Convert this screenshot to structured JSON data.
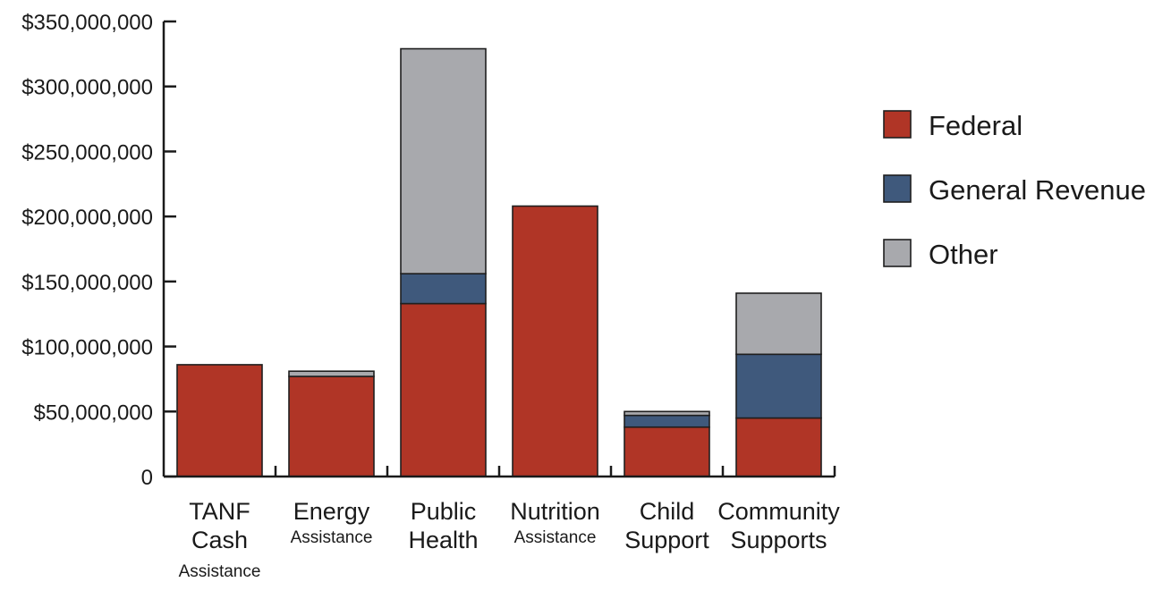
{
  "chart_data": {
    "type": "bar",
    "stacked": true,
    "categories": [
      [
        "TANF",
        "Cash",
        "Assistance"
      ],
      [
        "Energy",
        "Assistance"
      ],
      [
        "Public",
        "Health"
      ],
      [
        "Nutrition",
        "Assistance"
      ],
      [
        "Child",
        "Support"
      ],
      [
        "Community",
        "Supports"
      ]
    ],
    "series": [
      {
        "name": "Federal",
        "color": "#b03526",
        "values": [
          86000000,
          77000000,
          133000000,
          208000000,
          38000000,
          45000000
        ]
      },
      {
        "name": "General Revenue",
        "color": "#3f597c",
        "values": [
          0,
          0,
          23000000,
          0,
          9000000,
          49000000
        ]
      },
      {
        "name": "Other",
        "color": "#a8a9ad",
        "values": [
          0,
          4000000,
          173000000,
          0,
          3000000,
          47000000
        ]
      }
    ],
    "ylim": [
      0,
      350000000
    ],
    "yticks": [
      {
        "value": 0,
        "label": "0"
      },
      {
        "value": 50000000,
        "label": "$50,000,000"
      },
      {
        "value": 100000000,
        "label": "$100,000,000"
      },
      {
        "value": 150000000,
        "label": "$150,000,000"
      },
      {
        "value": 200000000,
        "label": "$200,000,000"
      },
      {
        "value": 250000000,
        "label": "$250,000,000"
      },
      {
        "value": 300000000,
        "label": "$300,000,000"
      },
      {
        "value": 350000000,
        "label": "$350,000,000"
      }
    ],
    "title": "",
    "xlabel": "",
    "ylabel": "",
    "grid": false,
    "legend_position": "right"
  }
}
